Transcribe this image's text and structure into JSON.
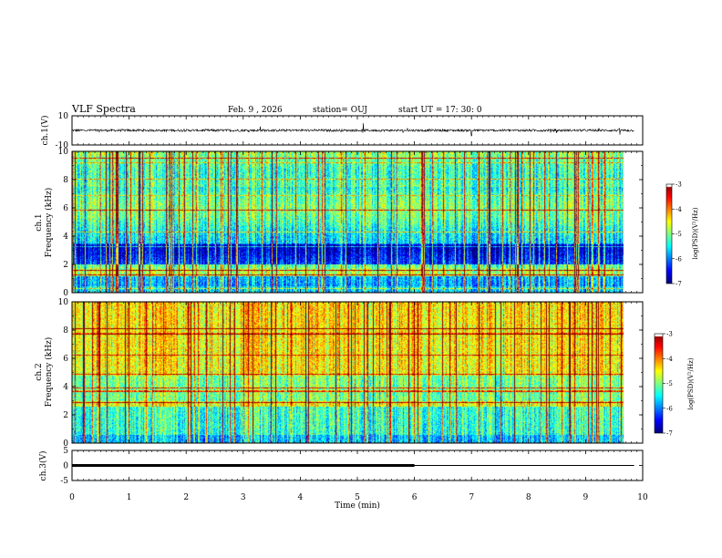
{
  "header": {
    "title": "VLF Spectra",
    "date": "Feb. 9 , 2026",
    "station": "station= OUJ",
    "start": "start UT = 17: 30: 0"
  },
  "chart_data": [
    {
      "type": "line",
      "id": "ch1-waveform",
      "ylabel": "ch.1(V)",
      "ylim": [
        -10,
        10
      ],
      "yticks": [
        "10",
        "-10"
      ],
      "xlim": [
        0,
        10
      ],
      "series": [
        {
          "name": "ch.1",
          "baseline": 0,
          "spikes_at_min": [
            3.3,
            5.1,
            7.0,
            9.6
          ]
        }
      ]
    },
    {
      "type": "heatmap",
      "id": "ch1-spectrogram",
      "ylabel": "ch.1",
      "ylabel2": "Frequency (kHz)",
      "ylim": [
        0,
        10
      ],
      "yticks": [
        "0",
        "2",
        "4",
        "6",
        "8",
        "10"
      ],
      "xlim": [
        0,
        9.85
      ],
      "colorbar": {
        "label": "log(PSD)(V²/Hz)",
        "ticks": [
          "-3",
          "-4",
          "-5",
          "-6",
          "-7"
        ],
        "range": [
          -7,
          -3
        ]
      }
    },
    {
      "type": "heatmap",
      "id": "ch2-spectrogram",
      "ylabel": "ch.2",
      "ylabel2": "Frequency (kHz)",
      "ylim": [
        0,
        10
      ],
      "yticks": [
        "0",
        "2",
        "4",
        "6",
        "8",
        "10"
      ],
      "xlim": [
        0,
        9.85
      ],
      "colorbar": {
        "label": "log(PSD)(V²/Hz)",
        "ticks": [
          "-3",
          "-4",
          "-5",
          "-6",
          "-7"
        ],
        "range": [
          -7,
          -3
        ]
      }
    },
    {
      "type": "line",
      "id": "ch3-trace",
      "ylabel": "ch.3(V)",
      "ylim": [
        -5,
        5
      ],
      "yticks": [
        "5",
        "0",
        "-5"
      ],
      "xlim": [
        0,
        10
      ],
      "series": [
        {
          "name": "ch.3",
          "value": 0,
          "thick_until_min": 6.0,
          "end_min": 9.85
        }
      ]
    }
  ],
  "xaxis": {
    "label": "Time (min)",
    "ticks": [
      "0",
      "1",
      "2",
      "3",
      "4",
      "5",
      "6",
      "7",
      "8",
      "9",
      "10"
    ],
    "range": [
      0,
      10
    ]
  }
}
